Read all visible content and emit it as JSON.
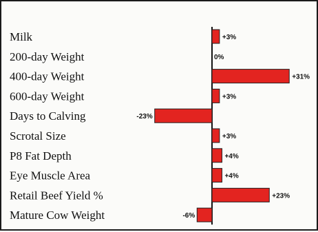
{
  "chart_data": {
    "type": "bar",
    "orientation": "horizontal",
    "categories": [
      "Milk",
      "200-day Weight",
      "400-day Weight",
      "600-day Weight",
      "Days to Calving",
      "Scrotal Size",
      "P8 Fat Depth",
      "Eye Muscle Area",
      "Retail Beef Yield %",
      "Mature Cow Weight"
    ],
    "values": [
      3,
      0,
      31,
      3,
      -23,
      3,
      4,
      4,
      23,
      -6
    ],
    "data_labels": [
      "+3%",
      "0%",
      "+31%",
      "+3%",
      "-23%",
      "+3%",
      "+4%",
      "+4%",
      "+23%",
      "-6%"
    ],
    "title": "",
    "xlabel": "",
    "ylabel": "",
    "xlim": [
      -25,
      33
    ],
    "grid": false,
    "bar_color": "#e32420",
    "axis_color": "#111111"
  }
}
